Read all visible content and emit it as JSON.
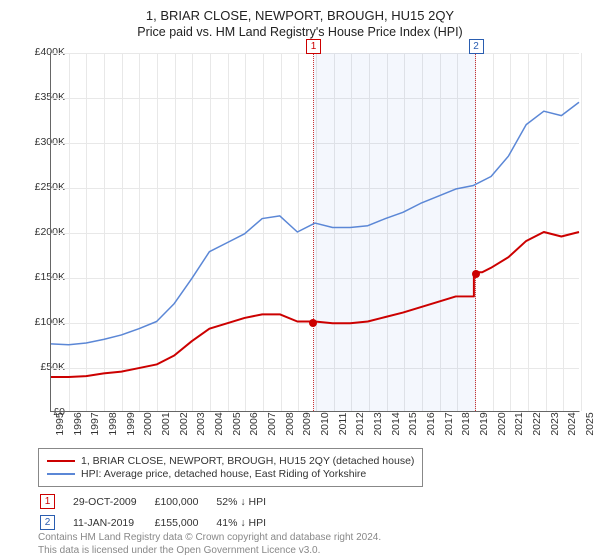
{
  "title": "1, BRIAR CLOSE, NEWPORT, BROUGH, HU15 2QY",
  "subtitle": "Price paid vs. HM Land Registry's House Price Index (HPI)",
  "chart": {
    "type": "line",
    "ylim": [
      0,
      400000
    ],
    "ytick_step": 50000,
    "ytick_labels": [
      "£0",
      "£50K",
      "£100K",
      "£150K",
      "£200K",
      "£250K",
      "£300K",
      "£350K",
      "£400K"
    ],
    "xlim": [
      1995,
      2025
    ],
    "xtick_step": 1,
    "xtick_labels": [
      "1995",
      "1996",
      "1997",
      "1998",
      "1999",
      "2000",
      "2001",
      "2002",
      "2003",
      "2004",
      "2005",
      "2006",
      "2007",
      "2008",
      "2009",
      "2010",
      "2011",
      "2012",
      "2013",
      "2014",
      "2015",
      "2016",
      "2017",
      "2018",
      "2019",
      "2020",
      "2021",
      "2022",
      "2023",
      "2024",
      "2025"
    ],
    "grid_color": "#e8e8e8",
    "background_color": "#ffffff",
    "series": [
      {
        "name": "1, BRIAR CLOSE, NEWPORT, BROUGH, HU15 2QY (detached house)",
        "color": "#cc0000",
        "line_width": 2,
        "data": [
          [
            1995,
            38000
          ],
          [
            1996,
            38000
          ],
          [
            1997,
            39000
          ],
          [
            1998,
            42000
          ],
          [
            1999,
            44000
          ],
          [
            2000,
            48000
          ],
          [
            2001,
            52000
          ],
          [
            2002,
            62000
          ],
          [
            2003,
            78000
          ],
          [
            2004,
            92000
          ],
          [
            2005,
            98000
          ],
          [
            2006,
            104000
          ],
          [
            2007,
            108000
          ],
          [
            2008,
            108000
          ],
          [
            2009,
            100000
          ],
          [
            2009.83,
            100000
          ],
          [
            2010,
            100000
          ],
          [
            2011,
            98000
          ],
          [
            2012,
            98000
          ],
          [
            2013,
            100000
          ],
          [
            2014,
            105000
          ],
          [
            2015,
            110000
          ],
          [
            2016,
            116000
          ],
          [
            2017,
            122000
          ],
          [
            2018,
            128000
          ],
          [
            2019.03,
            128000
          ],
          [
            2019.03,
            155000
          ],
          [
            2019.5,
            155000
          ],
          [
            2020,
            160000
          ],
          [
            2021,
            172000
          ],
          [
            2022,
            190000
          ],
          [
            2023,
            200000
          ],
          [
            2024,
            195000
          ],
          [
            2025,
            200000
          ]
        ]
      },
      {
        "name": "HPI: Average price, detached house, East Riding of Yorkshire",
        "color": "#5b87d6",
        "line_width": 1.5,
        "data": [
          [
            1995,
            75000
          ],
          [
            1996,
            74000
          ],
          [
            1997,
            76000
          ],
          [
            1998,
            80000
          ],
          [
            1999,
            85000
          ],
          [
            2000,
            92000
          ],
          [
            2001,
            100000
          ],
          [
            2002,
            120000
          ],
          [
            2003,
            148000
          ],
          [
            2004,
            178000
          ],
          [
            2005,
            188000
          ],
          [
            2006,
            198000
          ],
          [
            2007,
            215000
          ],
          [
            2008,
            218000
          ],
          [
            2009,
            200000
          ],
          [
            2010,
            210000
          ],
          [
            2011,
            205000
          ],
          [
            2012,
            205000
          ],
          [
            2013,
            207000
          ],
          [
            2014,
            215000
          ],
          [
            2015,
            222000
          ],
          [
            2016,
            232000
          ],
          [
            2017,
            240000
          ],
          [
            2018,
            248000
          ],
          [
            2019,
            252000
          ],
          [
            2020,
            262000
          ],
          [
            2021,
            285000
          ],
          [
            2022,
            320000
          ],
          [
            2023,
            335000
          ],
          [
            2024,
            330000
          ],
          [
            2025,
            345000
          ]
        ]
      }
    ],
    "markers": [
      {
        "n": "1",
        "x": 2009.83,
        "y": 100000,
        "label_top_y": -14,
        "color": "#cc0000"
      },
      {
        "n": "2",
        "x": 2019.03,
        "y": 155000,
        "label_top_y": -14,
        "color": "#2a5db0"
      }
    ],
    "highlight_band": {
      "from": 2009.83,
      "to": 2019.03
    }
  },
  "legend": {
    "rows": [
      {
        "color": "#cc0000",
        "label": "1, BRIAR CLOSE, NEWPORT, BROUGH, HU15 2QY (detached house)"
      },
      {
        "color": "#5b87d6",
        "label": "HPI: Average price, detached house, East Riding of Yorkshire"
      }
    ]
  },
  "sales": [
    {
      "n": "1",
      "color_class": "red",
      "date": "29-OCT-2009",
      "price": "£100,000",
      "delta": "52% ↓ HPI"
    },
    {
      "n": "2",
      "color_class": "blue",
      "date": "11-JAN-2019",
      "price": "£155,000",
      "delta": "41% ↓ HPI"
    }
  ],
  "copyright": {
    "line1": "Contains HM Land Registry data © Crown copyright and database right 2024.",
    "line2": "This data is licensed under the Open Government Licence v3.0."
  }
}
